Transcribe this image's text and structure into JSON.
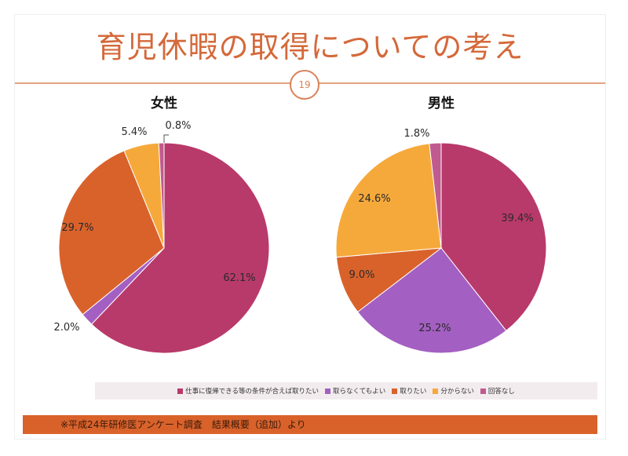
{
  "title": "育児休暇の取得についての考え",
  "page_number": "19",
  "chart_data": [
    {
      "type": "pie",
      "title": "女性",
      "categories": [
        "仕事に復帰できる等の条件が合えば取りたい",
        "取らなくてもよい",
        "取りたい",
        "分からない",
        "回答なし"
      ],
      "values": [
        62.1,
        2.0,
        29.7,
        5.4,
        0.8
      ],
      "labels": [
        "62.1%",
        "2.0%",
        "29.7%",
        "5.4%",
        "0.8%"
      ]
    },
    {
      "type": "pie",
      "title": "男性",
      "categories": [
        "仕事に復帰できる等の条件が合えば取りたい",
        "取らなくてもよい",
        "取りたい",
        "分からない",
        "回答なし"
      ],
      "values": [
        39.4,
        25.2,
        9.0,
        24.6,
        1.8
      ],
      "labels": [
        "39.4%",
        "25.2%",
        "9.0%",
        "24.6%",
        "1.8%"
      ]
    }
  ],
  "legend": [
    {
      "label": "仕事に復帰できる等の条件が合えば取りたい",
      "color": "#b83a6a"
    },
    {
      "label": "取らなくてもよい",
      "color": "#a45fc2"
    },
    {
      "label": "取りたい",
      "color": "#d9622b"
    },
    {
      "label": "分からない",
      "color": "#f6a93b"
    },
    {
      "label": "回答なし",
      "color": "#c05b8f"
    }
  ],
  "colors": [
    "#b83a6a",
    "#a45fc2",
    "#d9622b",
    "#f6a93b",
    "#c05b8f"
  ],
  "footer": "※平成24年研修医アンケート調査　結果概要（追加）より"
}
